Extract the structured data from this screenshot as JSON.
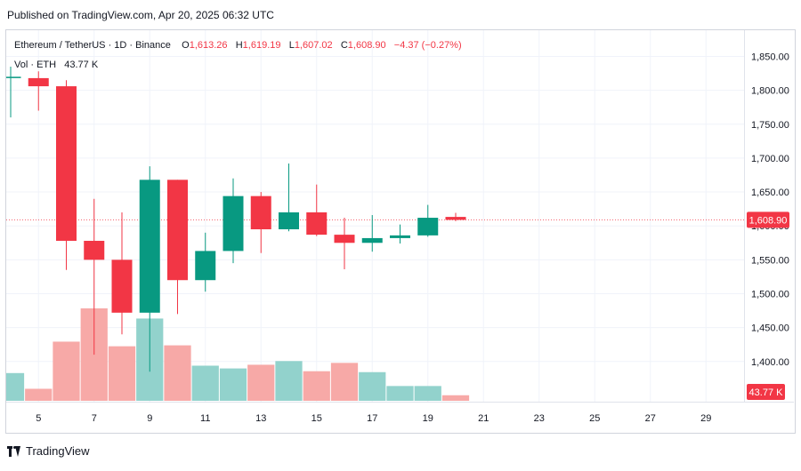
{
  "header": {
    "published": "Published on TradingView.com, Apr 20, 2025 06:32 UTC"
  },
  "legend": {
    "symbol": "Ethereum / TetherUS · 1D · Binance",
    "open_label": "O",
    "open": "1,613.26",
    "high_label": "H",
    "high": "1,619.19",
    "low_label": "L",
    "low": "1,607.02",
    "close_label": "C",
    "close": "1,608.90",
    "change": "−4.37 (−0.27%)",
    "vol_label": "Vol · ETH",
    "vol_value": "43.77 K"
  },
  "footer": {
    "brand": "TradingView"
  },
  "colors": {
    "up": "#089981",
    "down": "#f23645",
    "vol_up": "#92d2cc",
    "vol_down": "#f7a9a7",
    "grid": "#f0f3fa",
    "text": "#131722"
  },
  "chart_data": {
    "type": "candlestick",
    "x_tick_labels": [
      "5",
      "7",
      "9",
      "11",
      "13",
      "15",
      "17",
      "19",
      "21",
      "23",
      "25",
      "27",
      "29"
    ],
    "y_tick_labels": [
      "1,850.00",
      "1,800.00",
      "1,750.00",
      "1,700.00",
      "1,650.00",
      "1,600.00",
      "1,550.00",
      "1,500.00",
      "1,450.00",
      "1,400.00"
    ],
    "ylim": [
      1340,
      1875
    ],
    "last_price_label": "1,608.90",
    "volume_label": "43.77 K",
    "candles": [
      {
        "day": "4",
        "o": 1820,
        "h": 1835,
        "l": 1760,
        "c": 1820
      },
      {
        "day": "5",
        "o": 1818,
        "h": 1828,
        "l": 1770,
        "c": 1806
      },
      {
        "day": "6",
        "o": 1806,
        "h": 1815,
        "l": 1535,
        "c": 1578
      },
      {
        "day": "7",
        "o": 1578,
        "h": 1640,
        "l": 1410,
        "c": 1550
      },
      {
        "day": "8",
        "o": 1550,
        "h": 1620,
        "l": 1440,
        "c": 1472
      },
      {
        "day": "9",
        "o": 1472,
        "h": 1688,
        "l": 1385,
        "c": 1668
      },
      {
        "day": "10",
        "o": 1668,
        "h": 1668,
        "l": 1470,
        "c": 1520
      },
      {
        "day": "11",
        "o": 1520,
        "h": 1590,
        "l": 1503,
        "c": 1563
      },
      {
        "day": "12",
        "o": 1563,
        "h": 1670,
        "l": 1545,
        "c": 1644
      },
      {
        "day": "13",
        "o": 1644,
        "h": 1650,
        "l": 1560,
        "c": 1595
      },
      {
        "day": "14",
        "o": 1595,
        "h": 1692,
        "l": 1592,
        "c": 1620
      },
      {
        "day": "15",
        "o": 1620,
        "h": 1661,
        "l": 1585,
        "c": 1587
      },
      {
        "day": "16",
        "o": 1587,
        "h": 1612,
        "l": 1536,
        "c": 1575
      },
      {
        "day": "17",
        "o": 1575,
        "h": 1616,
        "l": 1562,
        "c": 1582
      },
      {
        "day": "18",
        "o": 1582,
        "h": 1602,
        "l": 1574,
        "c": 1586
      },
      {
        "day": "19",
        "o": 1586,
        "h": 1631,
        "l": 1584,
        "c": 1612
      },
      {
        "day": "20",
        "o": 1613.26,
        "h": 1619.19,
        "l": 1607.02,
        "c": 1608.9
      }
    ],
    "volume": [
      0.3,
      0.13,
      0.64,
      1.0,
      0.59,
      0.89,
      0.6,
      0.38,
      0.35,
      0.39,
      0.43,
      0.32,
      0.41,
      0.31,
      0.16,
      0.16,
      0.06
    ]
  }
}
